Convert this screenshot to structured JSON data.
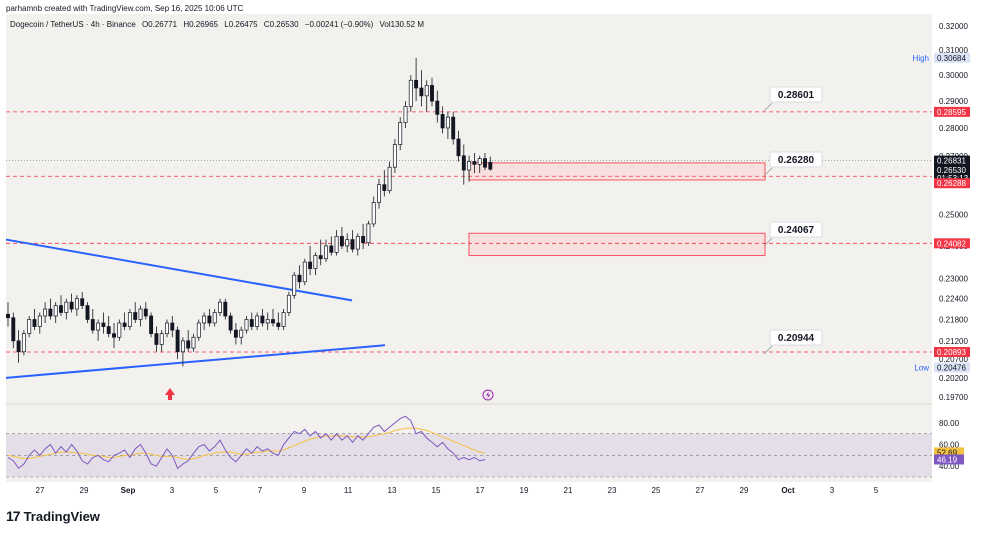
{
  "header": {
    "text": "parhamnb created with TradingView.com, Sep 16, 2025 10:06 UTC"
  },
  "symbol_bar": {
    "name": "Dogecoin / TetherUS · 4h · Binance",
    "open": "O0.26771",
    "high": "H0.26965",
    "low": "L0.26475",
    "close": "C0.26530",
    "change": "−0.00241 (−0.90%)",
    "volume": "Vol130.52 M"
  },
  "footer": {
    "logo_text": "TradingView"
  },
  "colors": {
    "up": "#131722",
    "down": "#131722",
    "trend": "#2962ff",
    "level": "#f23645",
    "zone_fill": "#f9d9d8",
    "zone_stroke": "#f7525f",
    "rsi": "#7e57c2",
    "rsi_ma": "#f5c242"
  },
  "chart_data": [
    {
      "type": "candlestick",
      "xaxis_ticks": [
        "27",
        "29",
        "Sep",
        "3",
        "5",
        "7",
        "9",
        "11",
        "13",
        "15",
        "17",
        "19",
        "21",
        "23",
        "25",
        "27",
        "29",
        "Oct",
        "3",
        "5"
      ],
      "yaxis_ticks": [
        "0.32000",
        "0.31000",
        "0.30000",
        "0.29000",
        "0.28000",
        "0.27000",
        "0.26000",
        "0.25000",
        "0.24000",
        "0.23000",
        "0.22400",
        "0.21800",
        "0.21200",
        "0.20700",
        "0.20200",
        "0.19700"
      ],
      "y_scale": "log",
      "ylim": [
        0.197,
        0.322
      ],
      "price_labels": [
        {
          "label": "High",
          "value": "0.30684"
        },
        {
          "label": "",
          "value": "0.28595"
        },
        {
          "label": "",
          "value": "0.26831"
        },
        {
          "label": "",
          "value": "0.26530"
        },
        {
          "label": "",
          "value": "01:53:13"
        },
        {
          "label": "",
          "value": "0.26288"
        },
        {
          "label": "",
          "value": "0.24082"
        },
        {
          "label": "",
          "value": "0.20893"
        },
        {
          "label": "Low",
          "value": "0.20476"
        }
      ],
      "annotations": [
        "0.28601",
        "0.26280",
        "0.24067",
        "0.20944"
      ],
      "horizontal_levels": [
        0.28595,
        0.26288,
        0.24082,
        0.20893
      ],
      "zones": [
        [
          0.2616,
          0.2675
        ],
        [
          0.237,
          0.244
        ]
      ],
      "candles": [
        [
          0.2195,
          0.223,
          0.216,
          0.2185
        ],
        [
          0.2185,
          0.22,
          0.21,
          0.212
        ],
        [
          0.212,
          0.215,
          0.206,
          0.209
        ],
        [
          0.209,
          0.215,
          0.208,
          0.214
        ],
        [
          0.214,
          0.219,
          0.213,
          0.218
        ],
        [
          0.218,
          0.221,
          0.215,
          0.216
        ],
        [
          0.216,
          0.22,
          0.214,
          0.219
        ],
        [
          0.219,
          0.223,
          0.217,
          0.221
        ],
        [
          0.221,
          0.224,
          0.218,
          0.219
        ],
        [
          0.219,
          0.223,
          0.217,
          0.222
        ],
        [
          0.222,
          0.225,
          0.219,
          0.22
        ],
        [
          0.22,
          0.224,
          0.218,
          0.223
        ],
        [
          0.223,
          0.2255,
          0.22,
          0.221
        ],
        [
          0.221,
          0.225,
          0.219,
          0.224
        ],
        [
          0.224,
          0.226,
          0.221,
          0.222
        ],
        [
          0.222,
          0.223,
          0.217,
          0.218
        ],
        [
          0.218,
          0.221,
          0.214,
          0.215
        ],
        [
          0.215,
          0.218,
          0.212,
          0.217
        ],
        [
          0.217,
          0.22,
          0.214,
          0.216
        ],
        [
          0.216,
          0.219,
          0.213,
          0.214
        ],
        [
          0.214,
          0.217,
          0.21,
          0.213
        ],
        [
          0.213,
          0.218,
          0.212,
          0.217
        ],
        [
          0.217,
          0.22,
          0.215,
          0.216
        ],
        [
          0.216,
          0.221,
          0.215,
          0.22
        ],
        [
          0.22,
          0.223,
          0.217,
          0.218
        ],
        [
          0.218,
          0.222,
          0.216,
          0.221
        ],
        [
          0.221,
          0.223,
          0.218,
          0.219
        ],
        [
          0.219,
          0.22,
          0.213,
          0.214
        ],
        [
          0.214,
          0.216,
          0.209,
          0.211
        ],
        [
          0.211,
          0.215,
          0.209,
          0.214
        ],
        [
          0.214,
          0.218,
          0.213,
          0.217
        ],
        [
          0.217,
          0.219,
          0.213,
          0.215
        ],
        [
          0.215,
          0.216,
          0.207,
          0.209
        ],
        [
          0.209,
          0.213,
          0.205,
          0.212
        ],
        [
          0.212,
          0.215,
          0.209,
          0.21
        ],
        [
          0.21,
          0.214,
          0.209,
          0.213
        ],
        [
          0.213,
          0.218,
          0.212,
          0.217
        ],
        [
          0.217,
          0.22,
          0.215,
          0.219
        ],
        [
          0.219,
          0.221,
          0.216,
          0.217
        ],
        [
          0.217,
          0.221,
          0.216,
          0.22
        ],
        [
          0.22,
          0.224,
          0.219,
          0.223
        ],
        [
          0.223,
          0.224,
          0.218,
          0.219
        ],
        [
          0.219,
          0.22,
          0.214,
          0.215
        ],
        [
          0.215,
          0.217,
          0.211,
          0.213
        ],
        [
          0.213,
          0.216,
          0.211,
          0.215
        ],
        [
          0.215,
          0.219,
          0.214,
          0.218
        ],
        [
          0.218,
          0.22,
          0.215,
          0.216
        ],
        [
          0.216,
          0.22,
          0.215,
          0.219
        ],
        [
          0.219,
          0.221,
          0.216,
          0.217
        ],
        [
          0.217,
          0.22,
          0.215,
          0.218
        ],
        [
          0.218,
          0.221,
          0.216,
          0.217
        ],
        [
          0.217,
          0.22,
          0.215,
          0.216
        ],
        [
          0.216,
          0.221,
          0.215,
          0.22
        ],
        [
          0.22,
          0.226,
          0.219,
          0.225
        ],
        [
          0.225,
          0.232,
          0.224,
          0.231
        ],
        [
          0.231,
          0.234,
          0.227,
          0.229
        ],
        [
          0.229,
          0.236,
          0.228,
          0.235
        ],
        [
          0.235,
          0.24,
          0.231,
          0.233
        ],
        [
          0.233,
          0.238,
          0.231,
          0.237
        ],
        [
          0.237,
          0.242,
          0.234,
          0.236
        ],
        [
          0.236,
          0.242,
          0.235,
          0.24
        ],
        [
          0.24,
          0.243,
          0.237,
          0.238
        ],
        [
          0.238,
          0.245,
          0.237,
          0.243
        ],
        [
          0.243,
          0.246,
          0.239,
          0.24
        ],
        [
          0.24,
          0.244,
          0.238,
          0.242
        ],
        [
          0.242,
          0.245,
          0.238,
          0.239
        ],
        [
          0.239,
          0.244,
          0.237,
          0.243
        ],
        [
          0.243,
          0.247,
          0.239,
          0.241
        ],
        [
          0.241,
          0.248,
          0.24,
          0.247
        ],
        [
          0.247,
          0.256,
          0.246,
          0.254
        ],
        [
          0.254,
          0.262,
          0.252,
          0.26
        ],
        [
          0.26,
          0.265,
          0.256,
          0.258
        ],
        [
          0.258,
          0.268,
          0.257,
          0.266
        ],
        [
          0.266,
          0.276,
          0.264,
          0.274
        ],
        [
          0.274,
          0.284,
          0.272,
          0.282
        ],
        [
          0.282,
          0.29,
          0.28,
          0.288
        ],
        [
          0.288,
          0.3,
          0.286,
          0.298
        ],
        [
          0.298,
          0.3068,
          0.29,
          0.295
        ],
        [
          0.295,
          0.302,
          0.288,
          0.292
        ],
        [
          0.292,
          0.298,
          0.286,
          0.296
        ],
        [
          0.296,
          0.299,
          0.288,
          0.29
        ],
        [
          0.29,
          0.294,
          0.282,
          0.285
        ],
        [
          0.285,
          0.288,
          0.278,
          0.28
        ],
        [
          0.28,
          0.286,
          0.276,
          0.284
        ],
        [
          0.284,
          0.286,
          0.274,
          0.276
        ],
        [
          0.276,
          0.279,
          0.268,
          0.27
        ],
        [
          0.27,
          0.274,
          0.26,
          0.265
        ],
        [
          0.265,
          0.27,
          0.261,
          0.268
        ],
        [
          0.268,
          0.271,
          0.264,
          0.267
        ],
        [
          0.267,
          0.27,
          0.264,
          0.269
        ],
        [
          0.269,
          0.271,
          0.265,
          0.266
        ],
        [
          0.2677,
          0.2697,
          0.2648,
          0.2653
        ]
      ]
    },
    {
      "type": "line",
      "name": "RSI",
      "yaxis_ticks": [
        "80.00",
        "60.00",
        "40.00"
      ],
      "price_labels": [
        "52.69",
        "46.19"
      ],
      "ylim": [
        30,
        90
      ],
      "bands": [
        70,
        30
      ],
      "rsi": [
        48,
        45,
        38,
        42,
        50,
        55,
        50,
        56,
        60,
        52,
        58,
        53,
        60,
        54,
        45,
        42,
        48,
        50,
        46,
        44,
        50,
        52,
        55,
        48,
        56,
        60,
        52,
        42,
        40,
        48,
        56,
        50,
        38,
        42,
        45,
        52,
        58,
        60,
        54,
        58,
        64,
        55,
        48,
        44,
        50,
        56,
        52,
        58,
        54,
        56,
        52,
        50,
        60,
        66,
        72,
        70,
        74,
        68,
        72,
        66,
        70,
        64,
        70,
        64,
        68,
        62,
        68,
        64,
        70,
        76,
        78,
        72,
        76,
        80,
        84,
        86,
        82,
        70,
        72,
        66,
        62,
        58,
        62,
        56,
        52,
        46,
        48,
        46,
        48,
        45,
        46
      ],
      "rsi_ma": [
        50,
        49,
        48,
        47,
        47,
        48,
        49,
        50,
        51,
        52,
        53,
        53,
        53,
        52,
        52,
        51,
        50,
        50,
        49,
        48,
        48,
        49,
        50,
        50,
        51,
        52,
        52,
        51,
        50,
        49,
        49,
        49,
        48,
        47,
        46,
        47,
        48,
        50,
        51,
        52,
        53,
        53,
        53,
        52,
        51,
        51,
        52,
        53,
        53,
        54,
        54,
        54,
        55,
        57,
        59,
        61,
        63,
        65,
        66,
        67,
        68,
        68,
        68,
        68,
        68,
        67,
        67,
        67,
        67,
        68,
        69,
        70,
        71,
        73,
        74,
        75,
        75,
        75,
        74,
        73,
        71,
        69,
        67,
        65,
        63,
        61,
        59,
        57,
        55,
        53,
        52
      ]
    }
  ]
}
